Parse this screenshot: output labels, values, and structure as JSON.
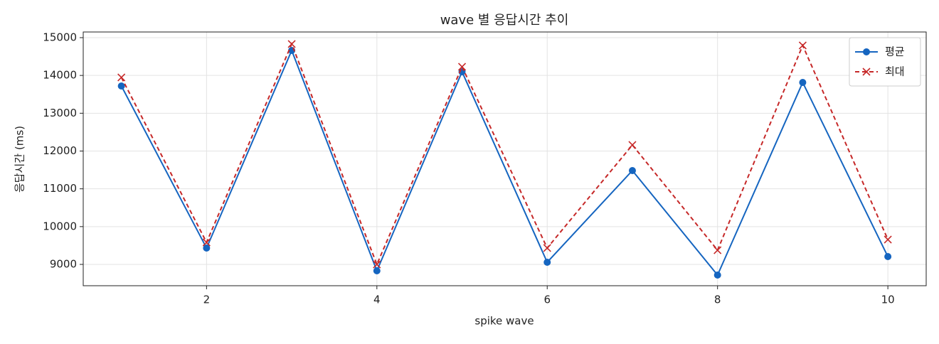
{
  "chart_data": {
    "type": "line",
    "title": "wave 별 응답시간 추이",
    "x_label": "spike wave",
    "y_label": "응답시간 (ms)",
    "x": [
      1,
      2,
      3,
      4,
      5,
      6,
      7,
      8,
      9,
      10
    ],
    "series": [
      {
        "name": "평균",
        "color": "#1565c0",
        "marker": "o",
        "dash": false,
        "values": [
          13721,
          9433,
          14661,
          8831,
          14097,
          9057,
          11483,
          8718,
          13815,
          9207
        ]
      },
      {
        "name": "최대",
        "color": "#c62828",
        "marker": "x",
        "dash": true,
        "values": [
          13947,
          9583,
          14831,
          9000,
          14229,
          9433,
          12160,
          9376,
          14793,
          9658
        ]
      }
    ],
    "xlim": [
      0.552,
      10.45
    ],
    "ylim": [
      8436,
      15150
    ],
    "xticks": [
      2,
      4,
      6,
      8,
      10
    ],
    "yticks": [
      9000,
      10000,
      11000,
      12000,
      13000,
      14000,
      15000
    ],
    "grid": true,
    "legend": "upper right"
  }
}
